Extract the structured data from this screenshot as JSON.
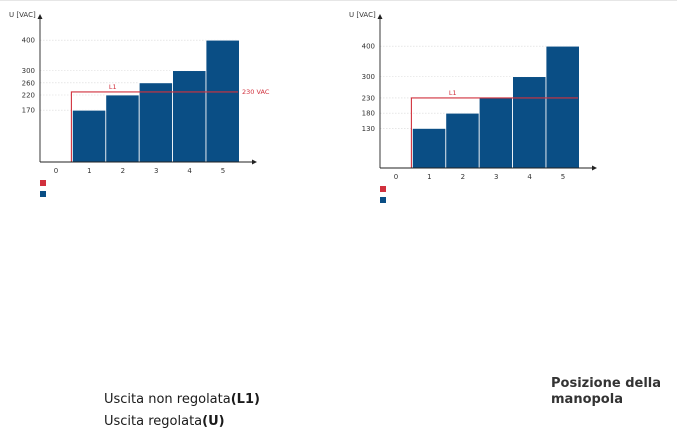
{
  "colors": {
    "bar": "#0a4e85",
    "limit_line": "#d1313d",
    "axis": "#222222",
    "grid": "#d8d8d8"
  },
  "legend": {
    "unregulated_prefix": "Uscita non regolata",
    "unregulated_suffix": "(L1)",
    "regulated_prefix": "Uscita regolata",
    "regulated_suffix": "(U)"
  },
  "x_caption": "Posizione della manopola",
  "chart_data": [
    {
      "type": "bar",
      "ylabel": "U [VAC]",
      "x_ticks": [
        "0",
        "1",
        "2",
        "3",
        "4",
        "5"
      ],
      "categories": [
        "1",
        "2",
        "3",
        "4",
        "5"
      ],
      "values": [
        170,
        220,
        260,
        300,
        400
      ],
      "y_ticks": [
        170,
        220,
        260,
        300,
        400
      ],
      "ylim": [
        0,
        450
      ],
      "limit": {
        "label": "L1",
        "value": 230,
        "value_label": "230 VAC"
      },
      "grid": true
    },
    {
      "type": "bar",
      "ylabel": "U [VAC]",
      "x_ticks": [
        "0",
        "1",
        "2",
        "3",
        "4",
        "5"
      ],
      "categories": [
        "1",
        "2",
        "3",
        "4",
        "5"
      ],
      "values": [
        130,
        180,
        230,
        300,
        400
      ],
      "y_ticks": [
        130,
        180,
        230,
        300,
        400
      ],
      "ylim": [
        0,
        450
      ],
      "limit": {
        "label": "L1",
        "value": 230
      },
      "grid": true
    }
  ]
}
